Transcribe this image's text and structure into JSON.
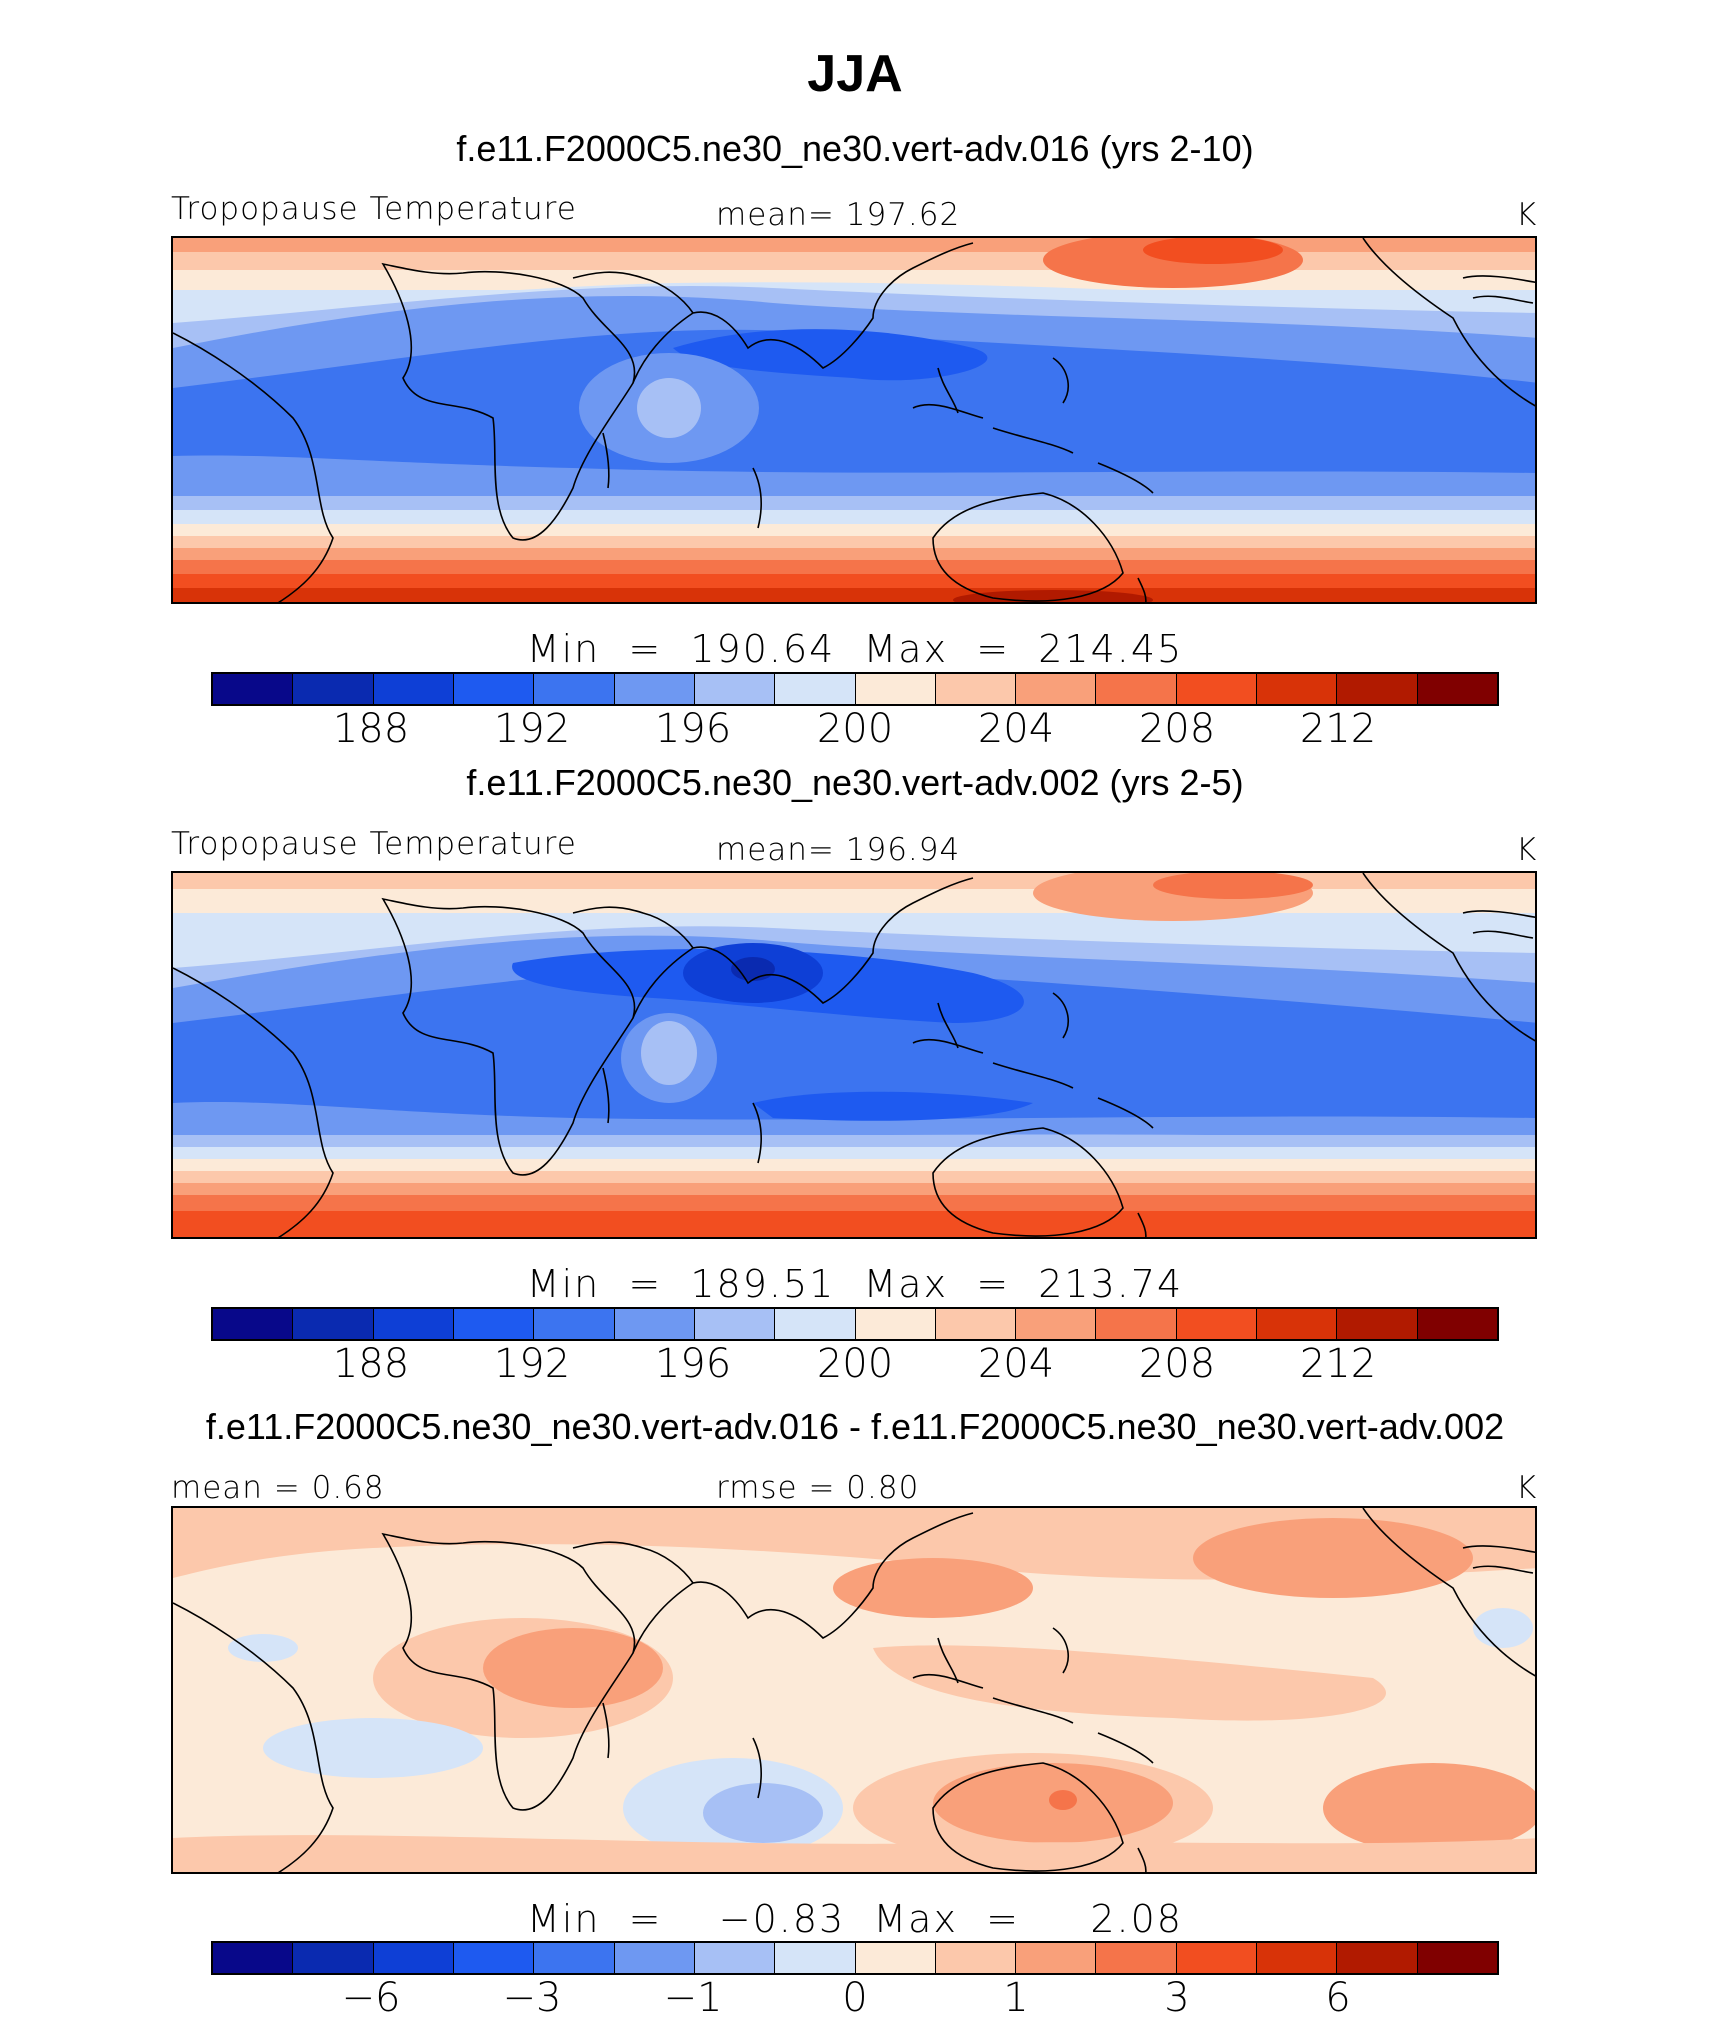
{
  "title": "JJA",
  "palette": [
    "#08088a",
    "#0a2ab0",
    "#0e3fd6",
    "#1e5af0",
    "#3c74f0",
    "#6e98f2",
    "#a7c0f5",
    "#d5e4f8",
    "#fcead8",
    "#fcc8ab",
    "#f9a07a",
    "#f5744a",
    "#f24e20",
    "#d83308",
    "#b11a00",
    "#800000"
  ],
  "panels": [
    {
      "subtitle": "f.e11.F2000C5.ne30_ne30.vert-adv.016 (yrs 2-10)",
      "left_label": "Tropopause Temperature",
      "center_label": "mean=  197.62",
      "units": "K",
      "minmax": "Min  =  190.64  Max  =  214.45",
      "ticks": [
        "188",
        "192",
        "196",
        "200",
        "204",
        "208",
        "212"
      ]
    },
    {
      "subtitle": "f.e11.F2000C5.ne30_ne30.vert-adv.002 (yrs 2-5)",
      "left_label": "Tropopause Temperature",
      "center_label": "mean=  196.94",
      "units": "K",
      "minmax": "Min  =  189.51  Max  =  213.74",
      "ticks": [
        "188",
        "192",
        "196",
        "200",
        "204",
        "208",
        "212"
      ]
    },
    {
      "subtitle": "f.e11.F2000C5.ne30_ne30.vert-adv.016 - f.e11.F2000C5.ne30_ne30.vert-adv.002",
      "left_label": "mean  =     0.68",
      "center_label": "rmse  =     0.80",
      "units": "K",
      "minmax": "Min  =    −0.83  Max  =     2.08",
      "ticks": [
        "−6",
        "−3",
        "−1",
        "0",
        "1",
        "3",
        "6"
      ]
    }
  ]
}
